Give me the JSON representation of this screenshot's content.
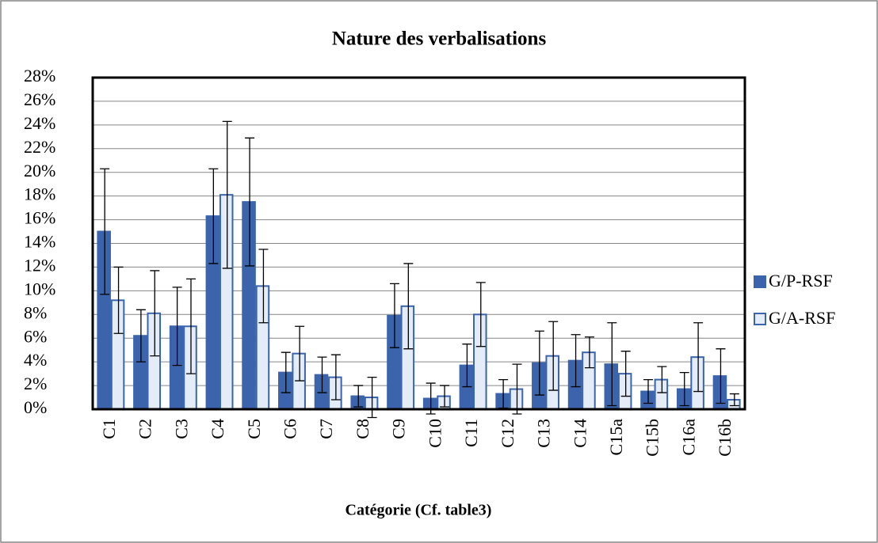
{
  "chart_data": {
    "type": "bar",
    "title": "Nature des verbalisations",
    "xlabel": "Catégorie (Cf. table3)",
    "categories": [
      "C1",
      "C2",
      "C3",
      "C4",
      "C5",
      "C6",
      "C7",
      "C8",
      "C9",
      "C10",
      "C11",
      "C12",
      "C13",
      "C14",
      "C15a",
      "C15b",
      "C16a",
      "C16b"
    ],
    "series": [
      {
        "name": "G/P-RSF",
        "color": "#3b64ad",
        "values": [
          15.0,
          6.2,
          7.0,
          16.3,
          17.5,
          3.1,
          2.9,
          1.1,
          7.9,
          0.9,
          3.7,
          1.3,
          3.9,
          4.1,
          3.8,
          1.5,
          1.7,
          2.8
        ],
        "errors": [
          5.3,
          2.2,
          3.3,
          4.0,
          5.4,
          1.7,
          1.5,
          0.9,
          2.7,
          1.3,
          1.8,
          1.2,
          2.7,
          2.2,
          3.5,
          1.0,
          1.4,
          2.3
        ]
      },
      {
        "name": "G/A-RSF",
        "color": "#e4ecf7",
        "values": [
          9.2,
          8.1,
          7.0,
          18.1,
          10.4,
          4.7,
          2.7,
          1.0,
          8.7,
          1.1,
          8.0,
          1.7,
          4.5,
          4.8,
          3.0,
          2.5,
          4.4,
          0.8
        ],
        "errors": [
          2.8,
          3.6,
          4.0,
          6.2,
          3.1,
          2.3,
          1.9,
          1.7,
          3.6,
          0.9,
          2.7,
          2.1,
          2.9,
          1.3,
          1.9,
          1.1,
          2.9,
          0.5
        ]
      }
    ],
    "ylim": [
      0,
      28
    ],
    "yticks": [
      {
        "value": 0,
        "label": "0%"
      },
      {
        "value": 2,
        "label": "2%"
      },
      {
        "value": 4,
        "label": "4%"
      },
      {
        "value": 6,
        "label": "6%"
      },
      {
        "value": 8,
        "label": "8%"
      },
      {
        "value": 10,
        "label": "10%"
      },
      {
        "value": 12,
        "label": "12%"
      },
      {
        "value": 14,
        "label": "14%"
      },
      {
        "value": 16,
        "label": "16%"
      },
      {
        "value": 18,
        "label": "18%"
      },
      {
        "value": 20,
        "label": "20%"
      },
      {
        "value": 22,
        "label": "22%"
      },
      {
        "value": 24,
        "label": "24%"
      },
      {
        "value": 26,
        "label": "26%"
      },
      {
        "value": 28,
        "label": "28%"
      }
    ],
    "grid": true,
    "legend": "right"
  }
}
